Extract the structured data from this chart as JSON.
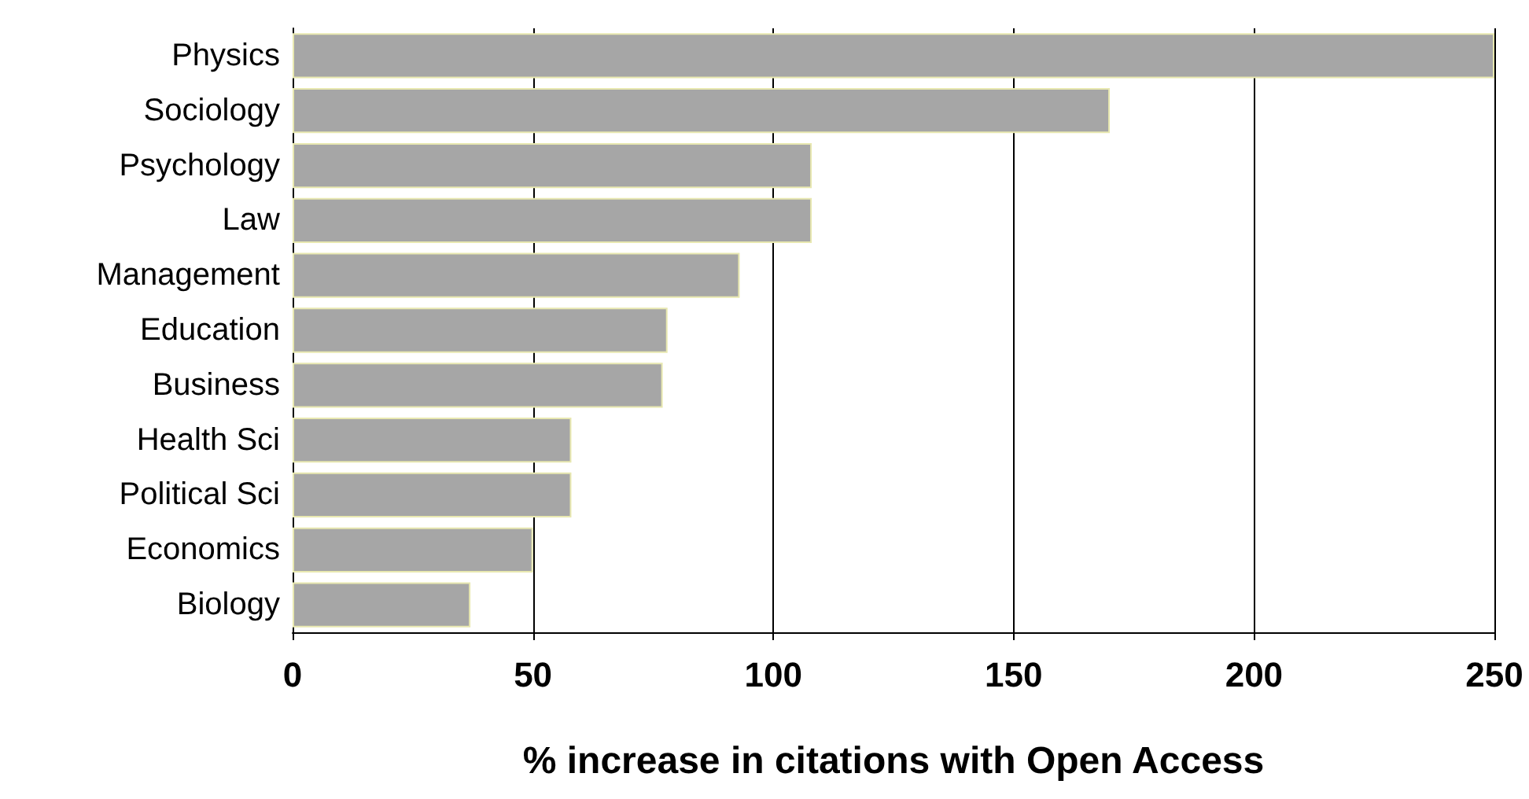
{
  "chart_data": {
    "type": "bar",
    "orientation": "horizontal",
    "xlabel": "% increase in citations with Open Access",
    "categories": [
      "Physics",
      "Sociology",
      "Psychology",
      "Law",
      "Management",
      "Education",
      "Business",
      "Health Sci",
      "Political Sci",
      "Economics",
      "Biology"
    ],
    "values": [
      250,
      170,
      108,
      108,
      93,
      78,
      77,
      58,
      58,
      50,
      37
    ],
    "color": "#a6a6a6",
    "xlim": [
      0,
      250
    ],
    "xticks": [
      0,
      50,
      100,
      150,
      200,
      250
    ],
    "grid": "x"
  }
}
